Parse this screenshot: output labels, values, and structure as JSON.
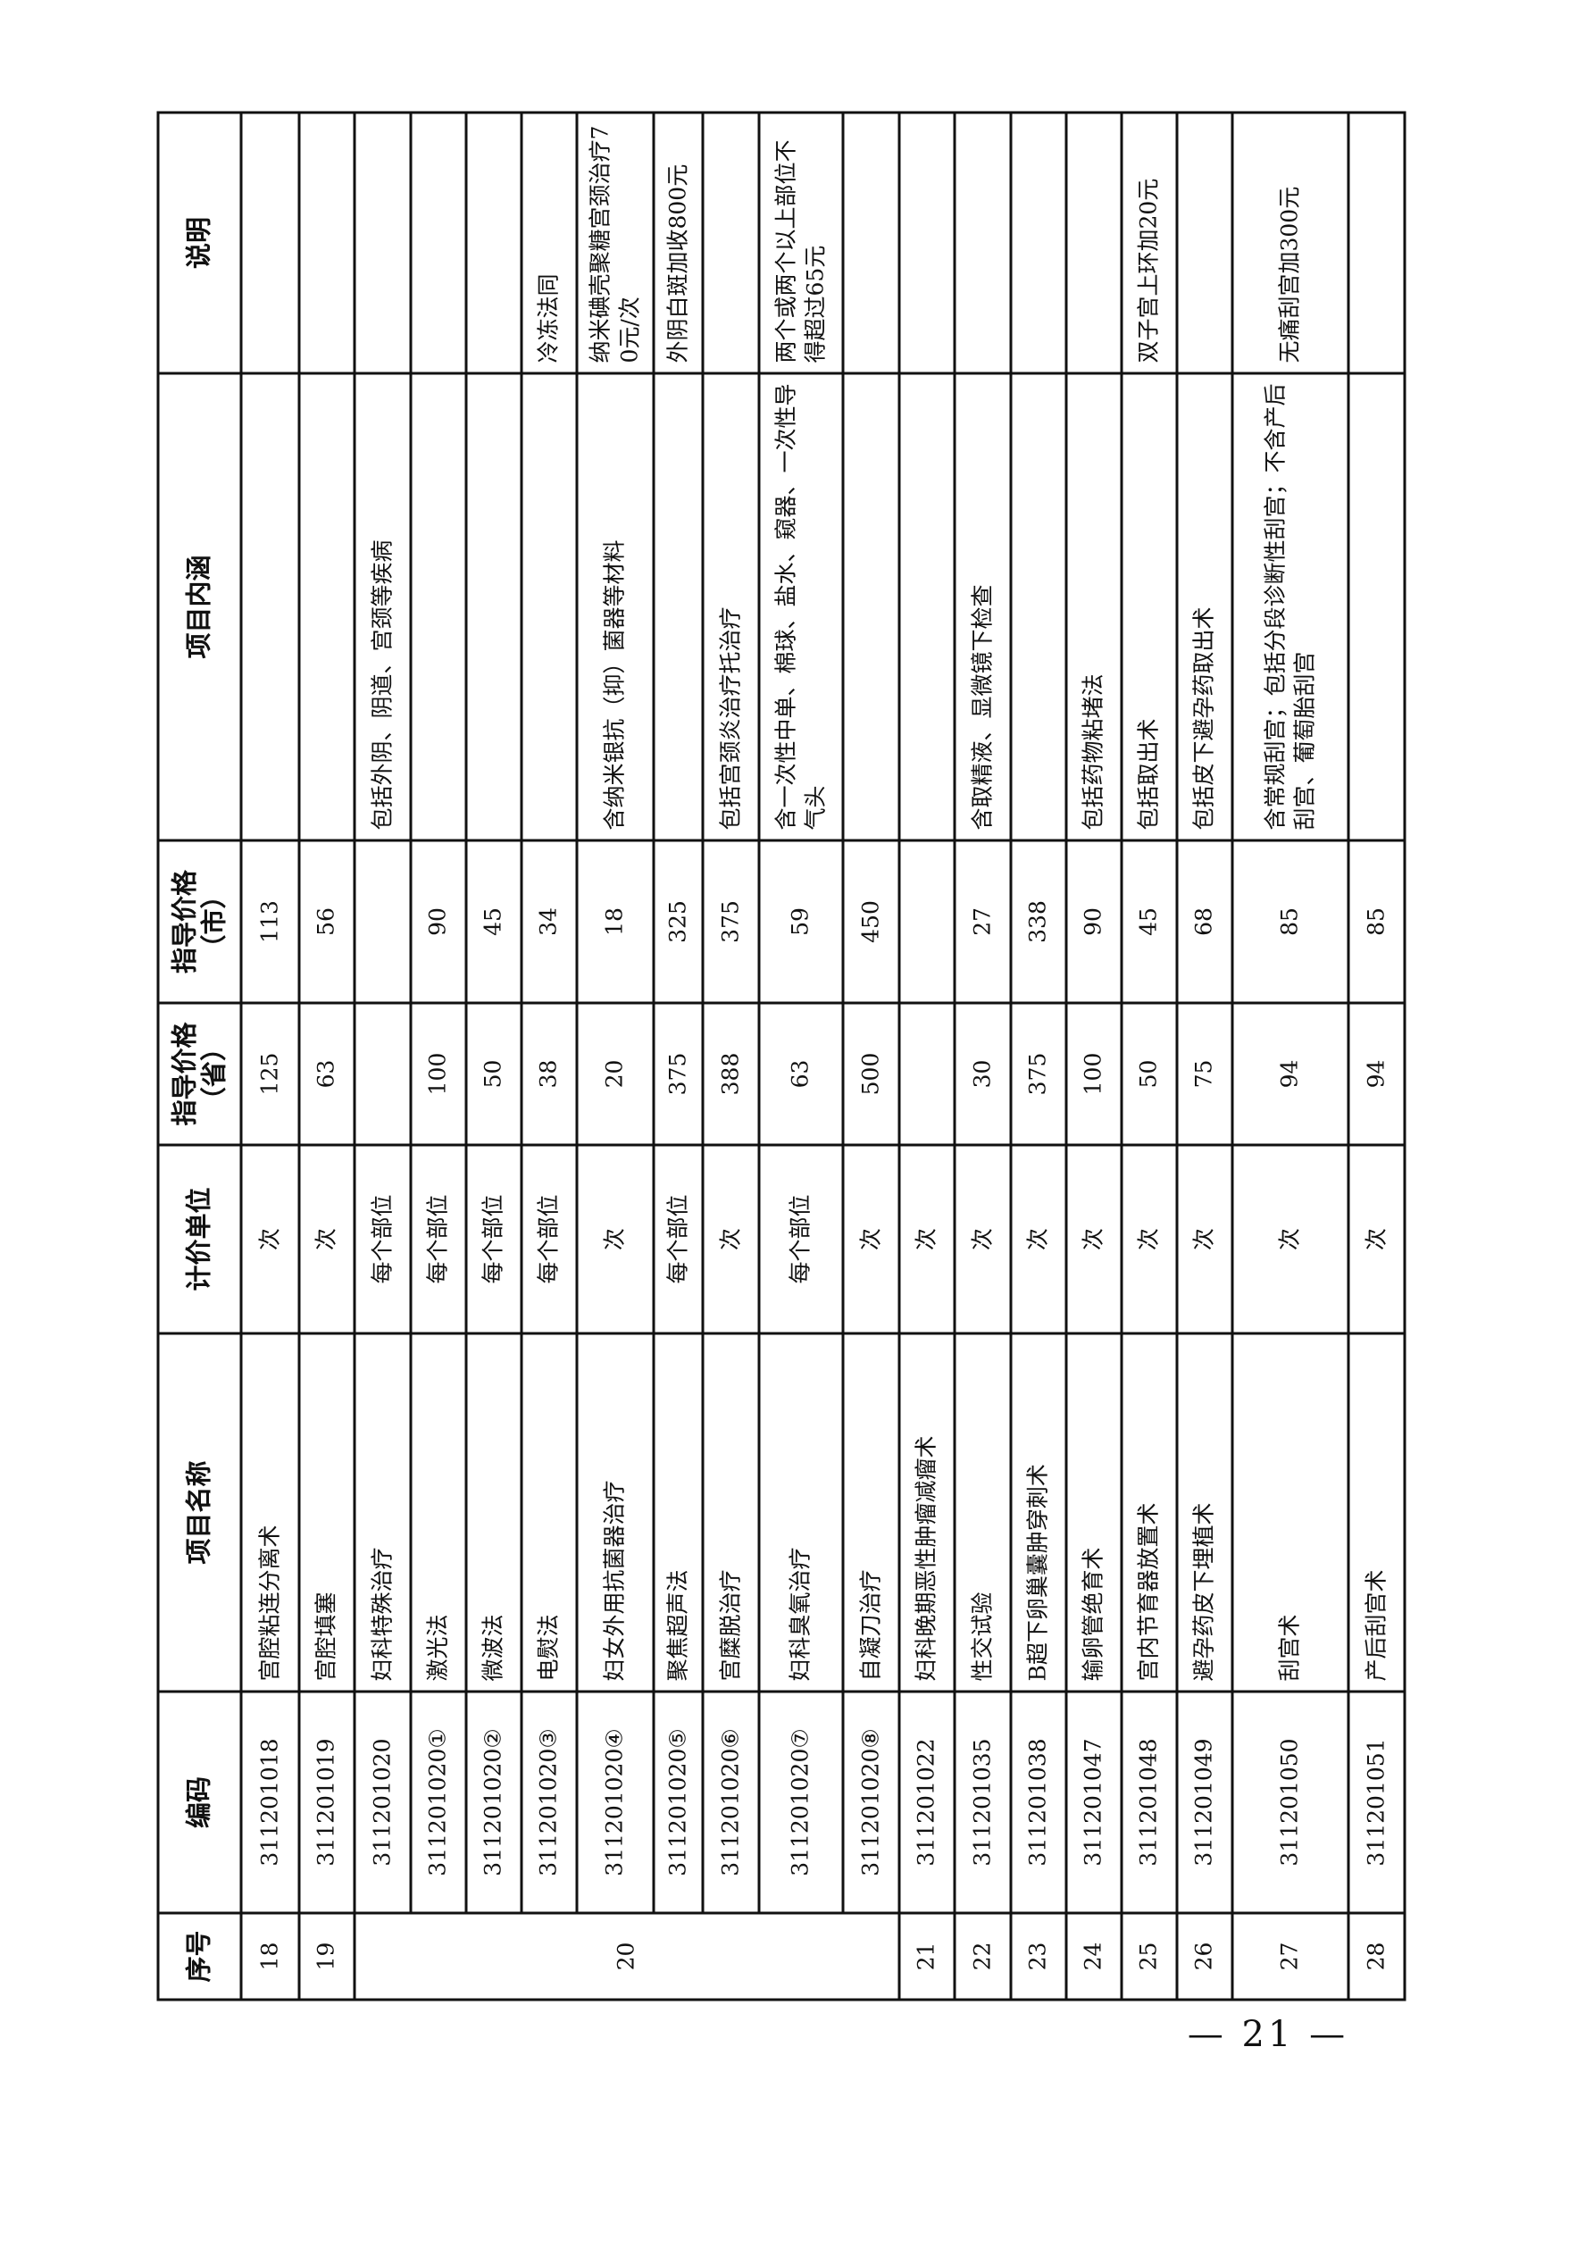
{
  "headers": [
    "序号",
    "编码",
    "项目名称",
    "计价单位",
    "指导价格（省）",
    "指导价格（市）",
    "项目内涵",
    "说明"
  ],
  "rows": [
    {
      "no": "18",
      "code": "311201018",
      "name": "宫腔粘连分离术",
      "unit": "次",
      "prov": "125",
      "city": "113",
      "content": "",
      "note": ""
    },
    {
      "no": "19",
      "code": "311201019",
      "name": "宫腔填塞",
      "unit": "次",
      "prov": "63",
      "city": "56",
      "content": "",
      "note": ""
    },
    {
      "no": "20",
      "code": "311201020",
      "name": "妇科特殊治疗",
      "unit": "每个部位",
      "prov": "",
      "city": "",
      "content": "包括外阴、阴道、宫颈等疾病",
      "note": ""
    },
    {
      "code": "311201020①",
      "name": "激光法",
      "unit": "每个部位",
      "prov": "100",
      "city": "90",
      "content": "",
      "note": ""
    },
    {
      "code": "311201020②",
      "name": "微波法",
      "unit": "每个部位",
      "prov": "50",
      "city": "45",
      "content": "",
      "note": ""
    },
    {
      "code": "311201020③",
      "name": "电熨法",
      "unit": "每个部位",
      "prov": "38",
      "city": "34",
      "content": "",
      "note": "冷冻法同"
    },
    {
      "code": "311201020④",
      "name": "妇女外用抗菌器治疗",
      "unit": "次",
      "prov": "20",
      "city": "18",
      "content": "含纳米银抗（抑）菌器等材料",
      "note": "纳米碘壳聚糖宫颈治疗70元/次"
    },
    {
      "code": "311201020⑤",
      "name": "聚焦超声法",
      "unit": "每个部位",
      "prov": "375",
      "city": "325",
      "content": "",
      "note": "外阴白斑加收800元"
    },
    {
      "code": "311201020⑥",
      "name": "宫糜脱治疗",
      "unit": "次",
      "prov": "388",
      "city": "375",
      "content": "包括宫颈炎治疗托治疗",
      "note": ""
    },
    {
      "code": "311201020⑦",
      "name": "妇科臭氧治疗",
      "unit": "每个部位",
      "prov": "63",
      "city": "59",
      "content": "含一次性中单、棉球、盐水、窥器、一次性导气头",
      "note": "两个或两个以上部位不得超过65元"
    },
    {
      "code": "311201020⑧",
      "name": "自凝刀治疗",
      "unit": "次",
      "prov": "500",
      "city": "450",
      "content": "",
      "note": ""
    },
    {
      "no": "21",
      "code": "311201022",
      "name": "妇科晚期恶性肿瘤减瘤术",
      "unit": "次",
      "prov": "",
      "city": "",
      "content": "",
      "note": ""
    },
    {
      "no": "22",
      "code": "311201035",
      "name": "性交试验",
      "unit": "次",
      "prov": "30",
      "city": "27",
      "content": "含取精液、显微镜下检查",
      "note": ""
    },
    {
      "no": "23",
      "code": "311201038",
      "name": "B超下卵巢囊肿穿刺术",
      "unit": "次",
      "prov": "375",
      "city": "338",
      "content": "",
      "note": ""
    },
    {
      "no": "24",
      "code": "311201047",
      "name": "输卵管绝育术",
      "unit": "次",
      "prov": "100",
      "city": "90",
      "content": "包括药物粘堵法",
      "note": ""
    },
    {
      "no": "25",
      "code": "311201048",
      "name": "宫内节育器放置术",
      "unit": "次",
      "prov": "50",
      "city": "45",
      "content": "包括取出术",
      "note": "双子宫上环加20元"
    },
    {
      "no": "26",
      "code": "311201049",
      "name": "避孕药皮下埋植术",
      "unit": "次",
      "prov": "75",
      "city": "68",
      "content": "包括皮下避孕药取出术",
      "note": ""
    },
    {
      "no": "27",
      "code": "311201050",
      "name": "刮宫术",
      "unit": "次",
      "prov": "94",
      "city": "85",
      "content": "含常规刮宫；包括分段诊断性刮宫；不含产后刮宫、葡萄胎刮宫",
      "note": "无痛刮宫加300元"
    },
    {
      "no": "28",
      "code": "311201051",
      "name": "产后刮宫术",
      "unit": "次",
      "prov": "94",
      "city": "85",
      "content": "",
      "note": ""
    }
  ],
  "page_number": "— 21 —"
}
